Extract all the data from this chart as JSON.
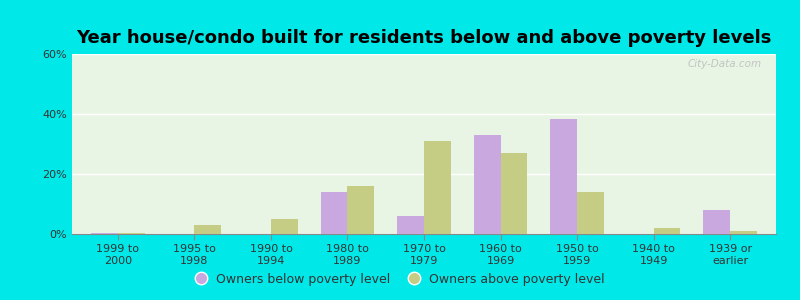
{
  "title": "Year house/condo built for residents below and above poverty levels",
  "categories": [
    "1999 to\n2000",
    "1995 to\n1998",
    "1990 to\n1994",
    "1980 to\n1989",
    "1970 to\n1979",
    "1960 to\n1969",
    "1950 to\n1959",
    "1940 to\n1949",
    "1939 or\nearlier"
  ],
  "below_poverty": [
    0.5,
    0.0,
    0.0,
    14.0,
    6.0,
    33.0,
    38.5,
    0.0,
    8.0
  ],
  "above_poverty": [
    0.5,
    3.0,
    5.0,
    16.0,
    31.0,
    27.0,
    14.0,
    2.0,
    1.0
  ],
  "below_color": "#c9a8e0",
  "above_color": "#c5cc84",
  "ylim": [
    0,
    60
  ],
  "yticks": [
    0,
    20,
    40,
    60
  ],
  "ytick_labels": [
    "0%",
    "20%",
    "40%",
    "60%"
  ],
  "outer_background": "#00e8e8",
  "plot_bg_color": "#e8f5e4",
  "bar_width": 0.35,
  "legend_below_label": "Owners below poverty level",
  "legend_above_label": "Owners above poverty level",
  "title_fontsize": 13,
  "tick_fontsize": 8,
  "legend_fontsize": 9,
  "watermark": "City-Data.com"
}
